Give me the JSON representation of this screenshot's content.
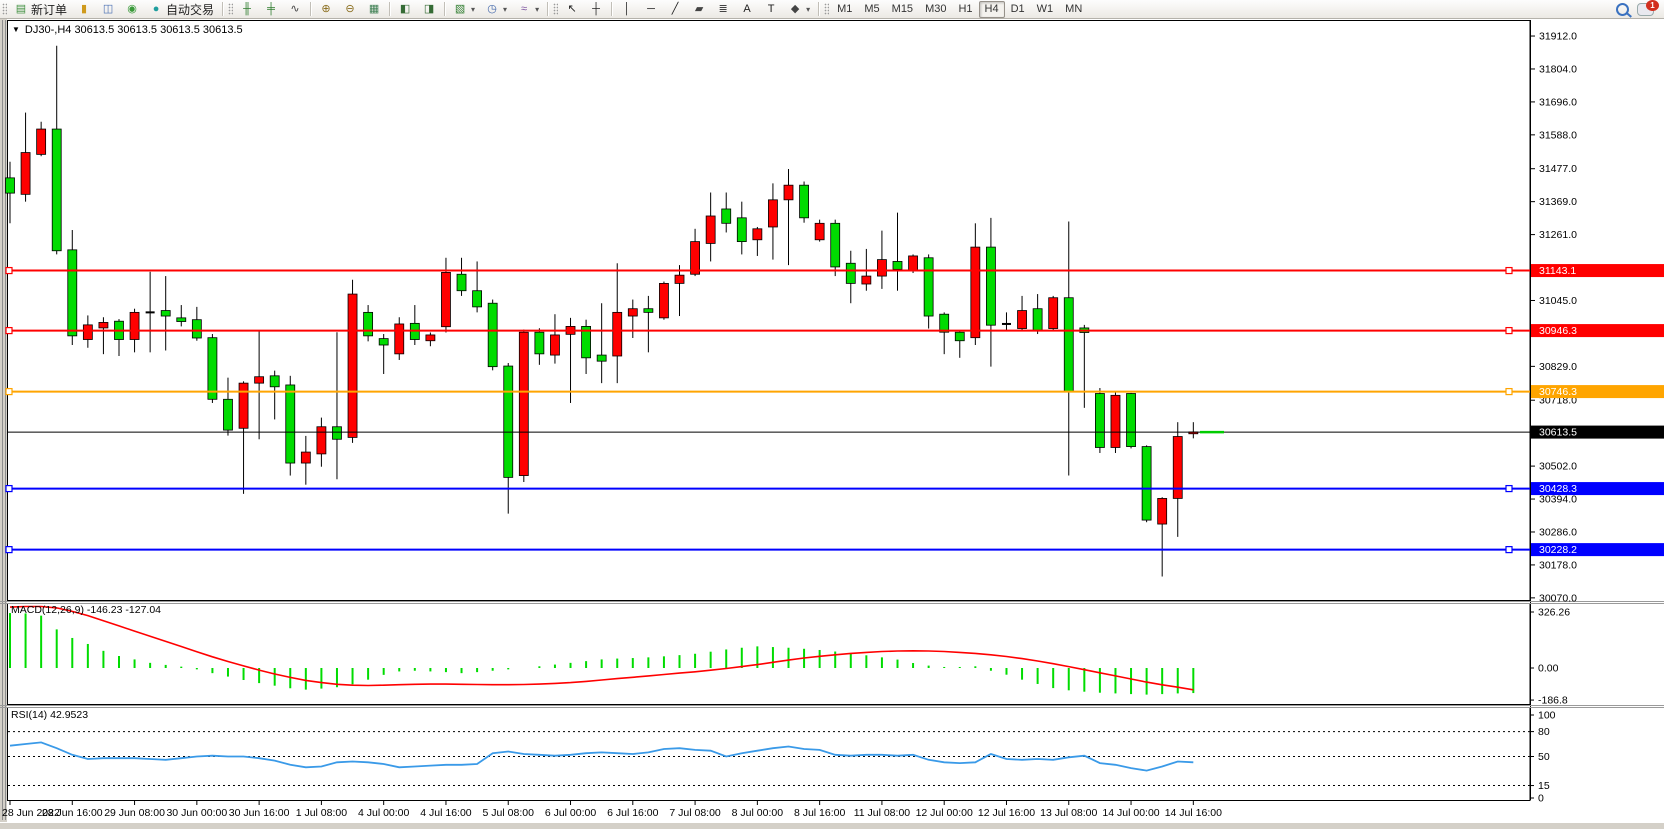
{
  "toolbar": {
    "new_order_label": "新订单",
    "autotrade_label": "自动交易",
    "left_icons_1": [
      {
        "name": "new-order-button",
        "glyph": "▤",
        "color": "#3f8f3f",
        "label_key": "new_order_label"
      }
    ],
    "left_icons_2": [
      {
        "name": "depth-of-market-icon",
        "glyph": "▮",
        "color": "#cf9a1c"
      },
      {
        "name": "terminal-icon",
        "glyph": "◫",
        "color": "#4a6fb3"
      },
      {
        "name": "signals-icon",
        "glyph": "◉",
        "color": "#3a9a3a"
      },
      {
        "name": "autotrade-button",
        "glyph": "●",
        "color": "#1f9e9e",
        "label_key": "autotrade_label"
      }
    ],
    "chart_mode_icons": [
      {
        "name": "bar-chart-icon",
        "glyph": "╫",
        "color": "#2f7d2f"
      },
      {
        "name": "candlestick-chart-icon",
        "glyph": "╪",
        "color": "#2f7d2f"
      },
      {
        "name": "line-chart-icon",
        "glyph": "∿",
        "color": "#444"
      }
    ],
    "zoom_icons": [
      {
        "name": "zoom-in-icon",
        "glyph": "⊕",
        "color": "#8a6d1d"
      },
      {
        "name": "zoom-out-icon",
        "glyph": "⊖",
        "color": "#8a6d1d"
      },
      {
        "name": "tile-windows-icon",
        "glyph": "▦",
        "color": "#3a7d4f"
      }
    ],
    "arrange_icons": [
      {
        "name": "auto-scroll-icon",
        "glyph": "◧",
        "color": "#356b35"
      },
      {
        "name": "chart-shift-icon",
        "glyph": "◨",
        "color": "#356b35"
      }
    ],
    "dropdown_icons": [
      {
        "name": "new-chart-icon",
        "glyph": "▧",
        "color": "#2f7d2f",
        "dd": true
      },
      {
        "name": "period-clock-icon",
        "glyph": "◷",
        "color": "#3b62a8",
        "dd": true
      },
      {
        "name": "indicators-icon",
        "glyph": "≈",
        "color": "#7a4f9e",
        "dd": true
      }
    ],
    "cursor_icons": [
      {
        "name": "cursor-icon",
        "glyph": "↖",
        "color": "#222"
      },
      {
        "name": "crosshair-icon",
        "glyph": "┼",
        "color": "#222"
      }
    ],
    "draw_icons": [
      {
        "name": "vertical-line-icon",
        "glyph": "│",
        "color": "#222"
      },
      {
        "name": "horizontal-line-icon",
        "glyph": "─",
        "color": "#222"
      },
      {
        "name": "trendline-icon",
        "glyph": "╱",
        "color": "#222"
      },
      {
        "name": "equidistant-channel-icon",
        "glyph": "▰",
        "color": "#444"
      },
      {
        "name": "fibonacci-icon",
        "glyph": "≣",
        "color": "#444"
      },
      {
        "name": "text-icon",
        "glyph": "A",
        "color": "#222"
      },
      {
        "name": "label-icon",
        "glyph": "T",
        "color": "#222"
      },
      {
        "name": "shapes-icon",
        "glyph": "◆",
        "color": "#444",
        "dd": true
      }
    ],
    "timeframes": [
      "M1",
      "M5",
      "M15",
      "M30",
      "H1",
      "H4",
      "D1",
      "W1",
      "MN"
    ],
    "active_timeframe": "H4",
    "notification_count": "1"
  },
  "chart": {
    "title": "DJ30-,H4  30613.5 30613.5 30613.5 30613.5",
    "macd_label": "MACD(12,26,9)",
    "macd_value": "-146.23 -127.04",
    "rsi_label": "RSI(14)",
    "rsi_value": "42.9523"
  },
  "chart_data": {
    "type": "candlestick",
    "symbol": "DJ30-",
    "timeframe": "H4",
    "convention": "red=bullish, green=bearish (Chinese color scheme)",
    "ylim": [
      30063,
      31958
    ],
    "y_ticks": [
      "31912.0",
      "31804.0",
      "31696.0",
      "31588.0",
      "31477.0",
      "31369.0",
      "31261.0",
      "31045.0",
      "30829.0",
      "30718.0",
      "30502.0",
      "30394.0",
      "30286.0",
      "30178.0",
      "30070.0"
    ],
    "hlines": [
      {
        "price": 31143.1,
        "label": "31143.1",
        "color": "#FF0000",
        "width": 2,
        "handles": true
      },
      {
        "price": 30946.3,
        "label": "30946.3",
        "color": "#FF0000",
        "width": 2,
        "handles": true
      },
      {
        "price": 30746.3,
        "label": "30746.3",
        "color": "#FFA500",
        "width": 2,
        "handles": true
      },
      {
        "price": 30613.5,
        "label": "30613.5",
        "color": "#000000",
        "width": 1,
        "handles": false,
        "current": true
      },
      {
        "price": 30428.3,
        "label": "30428.3",
        "color": "#0000FF",
        "width": 2,
        "handles": true
      },
      {
        "price": 30228.2,
        "label": "30228.2",
        "color": "#0000FF",
        "width": 2,
        "handles": true
      }
    ],
    "current_price": 30613.5,
    "up_color": "#FF0000",
    "down_color": "#00DC00",
    "x_labels": [
      "28 Jun 2022",
      "28 Jun 16:00",
      "29 Jun 08:00",
      "30 Jun 00:00",
      "30 Jun 16:00",
      "1 Jul 08:00",
      "4 Jul 00:00",
      "4 Jul 16:00",
      "5 Jul 08:00",
      "6 Jul 00:00",
      "6 Jul 16:00",
      "7 Jul 08:00",
      "8 Jul 00:00",
      "8 Jul 16:00",
      "11 Jul 08:00",
      "12 Jul 00:00",
      "12 Jul 16:00",
      "13 Jul 08:00",
      "14 Jul 00:00",
      "14 Jul 16:00"
    ],
    "ohlc": [
      [
        31447,
        31500,
        31298,
        31397
      ],
      [
        31393,
        31661,
        31369,
        31530
      ],
      [
        31524,
        31631,
        31518,
        31607
      ],
      [
        31607,
        31880,
        31196,
        31208
      ],
      [
        31211,
        31276,
        30899,
        30929
      ],
      [
        30917,
        30996,
        30890,
        30965
      ],
      [
        30955,
        30990,
        30869,
        30973
      ],
      [
        30977,
        30984,
        30863,
        30917
      ],
      [
        30917,
        31018,
        30875,
        31006
      ],
      [
        31006,
        31139,
        30875,
        31006
      ],
      [
        31012,
        31125,
        30881,
        30994
      ],
      [
        30988,
        31030,
        30960,
        30976
      ],
      [
        30982,
        31024,
        30913,
        30922
      ],
      [
        30923,
        30935,
        30709,
        30721
      ],
      [
        30721,
        30792,
        30602,
        30620
      ],
      [
        30626,
        30780,
        30411,
        30774
      ],
      [
        30774,
        30947,
        30590,
        30795
      ],
      [
        30798,
        30815,
        30655,
        30762
      ],
      [
        30768,
        30798,
        30471,
        30512
      ],
      [
        30512,
        30601,
        30441,
        30548
      ],
      [
        30542,
        30661,
        30500,
        30631
      ],
      [
        30631,
        30941,
        30459,
        30590
      ],
      [
        30596,
        31113,
        30578,
        31066
      ],
      [
        31006,
        31030,
        30911,
        30929
      ],
      [
        30920,
        30935,
        30804,
        30899
      ],
      [
        30870,
        30990,
        30850,
        30968
      ],
      [
        30970,
        31030,
        30899,
        30917
      ],
      [
        30913,
        30940,
        30895,
        30932
      ],
      [
        30959,
        31185,
        30940,
        31137
      ],
      [
        31131,
        31185,
        31060,
        31077
      ],
      [
        31077,
        31173,
        31006,
        31024
      ],
      [
        31036,
        31048,
        30816,
        30828
      ],
      [
        30830,
        30840,
        30346,
        30465
      ],
      [
        30471,
        30950,
        30450,
        30941
      ],
      [
        30941,
        30954,
        30834,
        30870
      ],
      [
        30866,
        31000,
        30838,
        30932
      ],
      [
        30934,
        30988,
        30709,
        30960
      ],
      [
        30960,
        30982,
        30804,
        30857
      ],
      [
        30866,
        31036,
        30774,
        30846
      ],
      [
        30863,
        31167,
        30774,
        31006
      ],
      [
        30994,
        31048,
        30922,
        31018
      ],
      [
        31018,
        31060,
        30875,
        31006
      ],
      [
        30988,
        31107,
        30982,
        31101
      ],
      [
        31101,
        31161,
        30994,
        31128
      ],
      [
        31131,
        31280,
        31125,
        31238
      ],
      [
        31232,
        31399,
        31173,
        31322
      ],
      [
        31345,
        31399,
        31268,
        31298
      ],
      [
        31316,
        31369,
        31196,
        31238
      ],
      [
        31244,
        31286,
        31191,
        31280
      ],
      [
        31286,
        31429,
        31179,
        31375
      ],
      [
        31375,
        31476,
        31161,
        31423
      ],
      [
        31423,
        31435,
        31300,
        31316
      ],
      [
        31244,
        31310,
        31238,
        31298
      ],
      [
        31298,
        31310,
        31125,
        31155
      ],
      [
        31167,
        31208,
        31036,
        31101
      ],
      [
        31099,
        31214,
        31077,
        31125
      ],
      [
        31125,
        31274,
        31083,
        31179
      ],
      [
        31173,
        31333,
        31077,
        31147
      ],
      [
        31143,
        31196,
        31135,
        31191
      ],
      [
        31185,
        31196,
        30953,
        30994
      ],
      [
        31000,
        31006,
        30869,
        30941
      ],
      [
        30941,
        30947,
        30857,
        30913
      ],
      [
        30923,
        31298,
        30899,
        31220
      ],
      [
        31220,
        31316,
        30828,
        30964
      ],
      [
        30968,
        31006,
        30947,
        30968
      ],
      [
        30953,
        31060,
        30947,
        31012
      ],
      [
        31018,
        31066,
        30935,
        30947
      ],
      [
        30953,
        31060,
        30945,
        31054
      ],
      [
        31054,
        31304,
        30471,
        30746
      ],
      [
        30955,
        30965,
        30693,
        30940
      ],
      [
        30740,
        30758,
        30545,
        30563
      ],
      [
        30563,
        30746,
        30545,
        30734
      ],
      [
        30740,
        30742,
        30560,
        30566
      ],
      [
        30566,
        30570,
        30318,
        30325
      ],
      [
        30312,
        30400,
        30140,
        30396
      ],
      [
        30396,
        30646,
        30270,
        30599
      ],
      [
        30608,
        30646,
        30593,
        30614
      ]
    ],
    "macd": {
      "label": "MACD(12,26,9)",
      "current": "-146.23 -127.04",
      "ticks": [
        "326.26",
        "0.00",
        "-186.8"
      ],
      "tick_values": [
        326.26,
        0.0,
        -186.8
      ],
      "histogram": [
        320,
        318,
        305,
        225,
        175,
        140,
        100,
        70,
        50,
        30,
        18,
        8,
        -8,
        -30,
        -50,
        -70,
        -88,
        -103,
        -118,
        -126,
        -120,
        -112,
        -95,
        -68,
        -40,
        -20,
        -16,
        -20,
        -24,
        -30,
        -24,
        -16,
        -8,
        0,
        10,
        20,
        30,
        40,
        50,
        55,
        58,
        62,
        68,
        75,
        83,
        95,
        108,
        118,
        126,
        122,
        118,
        112,
        105,
        96,
        87,
        74,
        62,
        49,
        29,
        14,
        6,
        6,
        10,
        -16,
        -39,
        -68,
        -93,
        -117,
        -130,
        -138,
        -144,
        -148,
        -152,
        -155,
        -152,
        -148,
        -146
      ],
      "signal": [
        355,
        358,
        358,
        350,
        330,
        305,
        275,
        245,
        215,
        185,
        155,
        125,
        95,
        65,
        38,
        12,
        -12,
        -35,
        -55,
        -72,
        -85,
        -95,
        -100,
        -102,
        -100,
        -97,
        -95,
        -94,
        -94,
        -95,
        -96,
        -97,
        -97,
        -96,
        -94,
        -90,
        -85,
        -78,
        -70,
        -62,
        -54,
        -46,
        -38,
        -30,
        -22,
        -13,
        -3,
        8,
        20,
        33,
        46,
        58,
        68,
        77,
        85,
        91,
        96,
        99,
        100,
        99,
        96,
        91,
        85,
        77,
        67,
        55,
        41,
        25,
        8,
        -10,
        -28,
        -46,
        -64,
        -82,
        -98,
        -112,
        -127
      ]
    },
    "rsi": {
      "label": "RSI(14)",
      "current": "42.9523",
      "ticks": [
        "100",
        "80",
        "50",
        "15",
        "0"
      ],
      "levels": [
        80,
        50,
        15
      ],
      "values": [
        63,
        65,
        67,
        60,
        52,
        47,
        48,
        48,
        48,
        47,
        46,
        48,
        50,
        51,
        50,
        50,
        48,
        45,
        40,
        37,
        38,
        43,
        44,
        43,
        41,
        37,
        38,
        39,
        40,
        40,
        41,
        54,
        56,
        53,
        52,
        51,
        52,
        54,
        55,
        54,
        53,
        55,
        59,
        60,
        58,
        57,
        50,
        54,
        57,
        60,
        62,
        59,
        58,
        52,
        51,
        52,
        52,
        51,
        52,
        46,
        43,
        42,
        43,
        53,
        47,
        46,
        47,
        46,
        49,
        51,
        42,
        40,
        36,
        33,
        38,
        44,
        43
      ]
    }
  }
}
